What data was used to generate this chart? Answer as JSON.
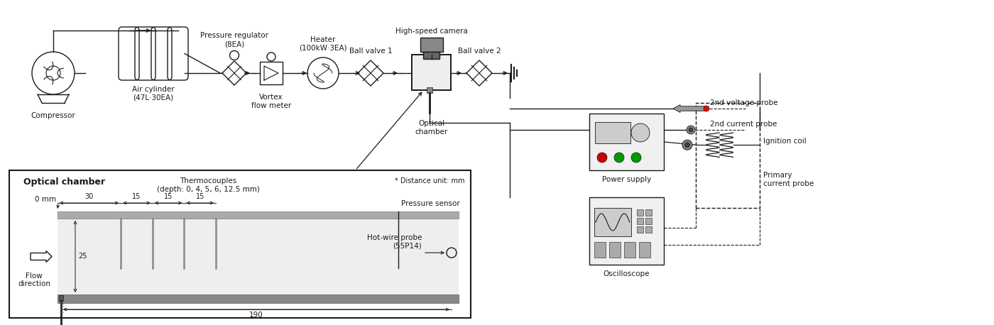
{
  "bg_color": "#ffffff",
  "line_color": "#1a1a1a",
  "figsize": [
    14.0,
    4.58
  ],
  "dpi": 100,
  "labels": {
    "compressor": "Compressor",
    "air_cylinder": "Air cylinder\n(47L·30EA)",
    "pressure_reg": "Pressure regulator\n(8EA)",
    "vortex": "Vortex\nflow meter",
    "heater": "Heater\n(100kW·3EA)",
    "ball_valve1": "Ball valve 1",
    "optical_chamber_top": "Optical\nchamber",
    "high_speed_camera": "High-speed camera",
    "ball_valve2": "Ball valve 2",
    "power_supply": "Power supply",
    "oscilloscope": "Oscilloscope",
    "voltage_probe": "2nd voltage probe",
    "current_probe2": "2nd current probe",
    "ignition_coil": "Ignition coil",
    "primary_current": "Primary\ncurrent probe",
    "optical_chamber_label": "Optical chamber",
    "thermocouples": "Thermocouples\n(depth: 0, 4, 5, 6, 12.5 mm)",
    "pressure_sensor": "Pressure sensor",
    "hot_wire": "Hot-wire probe\n(55P14)",
    "flow_direction": "Flow\ndirection",
    "distance_unit": "* Distance unit: mm",
    "dim_0mm": "0 mm",
    "dim_30": "30",
    "dim_15a": "15",
    "dim_15b": "15",
    "dim_15c": "15",
    "dim_25": "25",
    "dim_190": "190"
  }
}
